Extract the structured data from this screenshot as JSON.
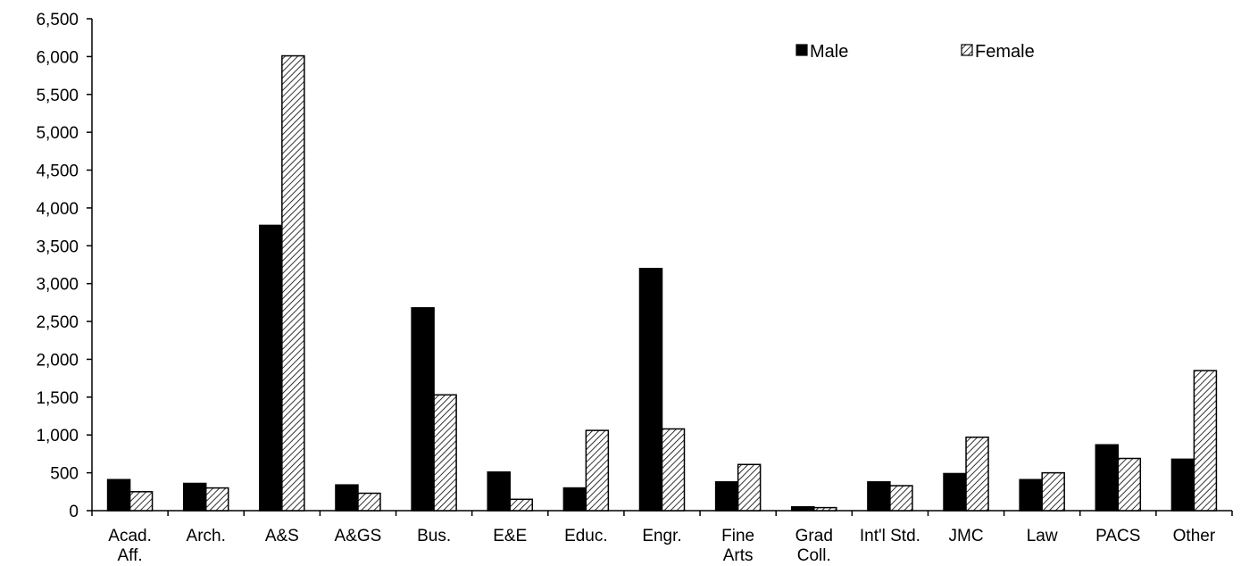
{
  "chart_data": {
    "type": "bar",
    "title": "",
    "xlabel": "",
    "ylabel": "",
    "categories": [
      [
        "Acad.",
        "Aff."
      ],
      [
        "Arch."
      ],
      [
        "A&S"
      ],
      [
        "A&GS"
      ],
      [
        "Bus."
      ],
      [
        "E&E"
      ],
      [
        "Educ."
      ],
      [
        "Engr."
      ],
      [
        "Fine",
        "Arts"
      ],
      [
        "Grad",
        "Coll."
      ],
      [
        "Int'l Std."
      ],
      [
        "JMC"
      ],
      [
        "Law"
      ],
      [
        "PACS"
      ],
      [
        "Other"
      ]
    ],
    "series": [
      {
        "name": "Male",
        "color": "#000000",
        "pattern": "solid",
        "values": [
          410,
          360,
          3770,
          340,
          2680,
          510,
          300,
          3200,
          380,
          50,
          380,
          490,
          410,
          870,
          680
        ]
      },
      {
        "name": "Female",
        "color": "#000000",
        "pattern": "diagonal-hatch",
        "values": [
          250,
          300,
          6010,
          230,
          1530,
          150,
          1060,
          1080,
          610,
          40,
          330,
          970,
          500,
          690,
          1850
        ]
      }
    ],
    "ylim": [
      0,
      6500
    ],
    "yticks": [
      0,
      500,
      1000,
      1500,
      2000,
      2500,
      3000,
      3500,
      4000,
      4500,
      5000,
      5500,
      6000,
      6500
    ],
    "ytick_labels": [
      "0",
      "500",
      "1,000",
      "1,500",
      "2,000",
      "2,500",
      "3,000",
      "3,500",
      "4,000",
      "4,500",
      "5,000",
      "5,500",
      "6,000",
      "6,500"
    ],
    "grid": false,
    "legend": {
      "position": "top-right",
      "orientation": "horizontal"
    }
  }
}
